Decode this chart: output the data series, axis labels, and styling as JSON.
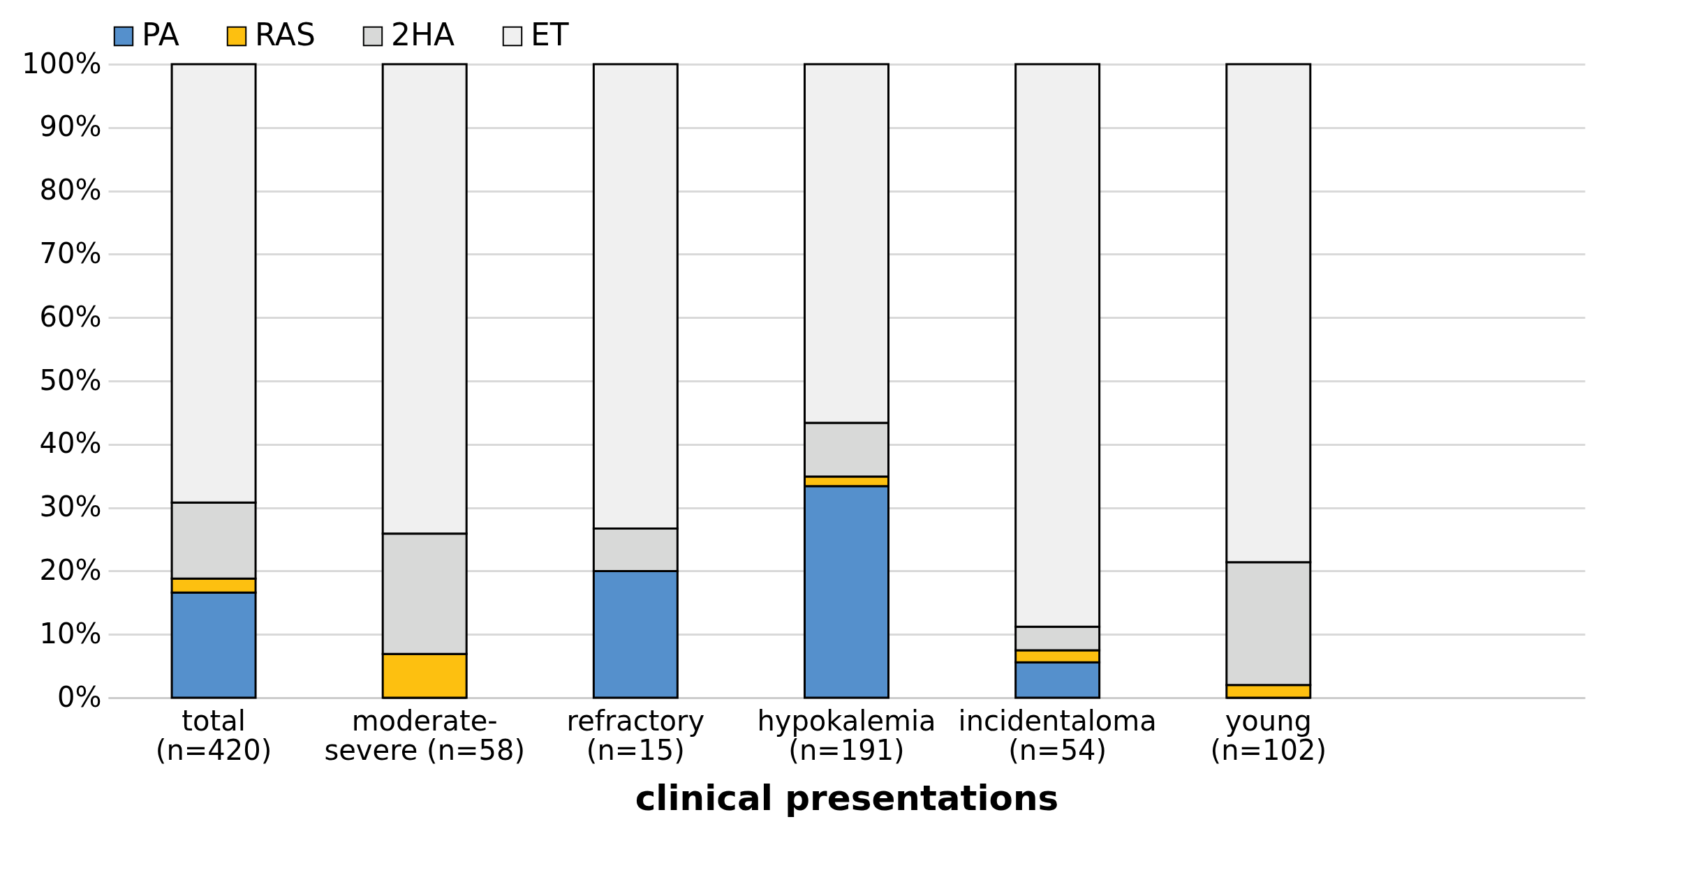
{
  "chart_data": {
    "type": "bar",
    "stacked": true,
    "xlabel": "clinical presentations",
    "categories": [
      "total (n=420)",
      "moderate-severe (n=58)",
      "refractory (n=15)",
      "hypokalemia (n=191)",
      "incidentaloma (n=54)",
      "young (n=102)"
    ],
    "series": [
      {
        "name": "PA",
        "color": "#5590cc",
        "values": [
          16.6,
          0,
          20.0,
          33.4,
          5.6,
          0
        ]
      },
      {
        "name": "RAS",
        "color": "#fdc010",
        "values": [
          2.2,
          6.9,
          0,
          1.5,
          1.9,
          2.0
        ]
      },
      {
        "name": "2HA",
        "color": "#d8d9d8",
        "values": [
          12.0,
          19.0,
          6.7,
          8.5,
          3.7,
          19.4
        ]
      },
      {
        "name": "ET",
        "color": "#f0f0f0",
        "values": [
          69.2,
          74.1,
          73.3,
          56.6,
          88.8,
          78.6
        ]
      }
    ],
    "ylim": [
      0,
      100
    ],
    "yticks": [
      {
        "value": 0,
        "label": "0%"
      },
      {
        "value": 10,
        "label": "10%"
      },
      {
        "value": 20,
        "label": "20%"
      },
      {
        "value": 30,
        "label": "30%"
      },
      {
        "value": 40,
        "label": "40%"
      },
      {
        "value": 50,
        "label": "50%"
      },
      {
        "value": 60,
        "label": "60%"
      },
      {
        "value": 70,
        "label": "70%"
      },
      {
        "value": 80,
        "label": "80%"
      },
      {
        "value": 90,
        "label": "90%"
      },
      {
        "value": 100,
        "label": "100%"
      }
    ],
    "grid": "y",
    "legend": "top"
  }
}
